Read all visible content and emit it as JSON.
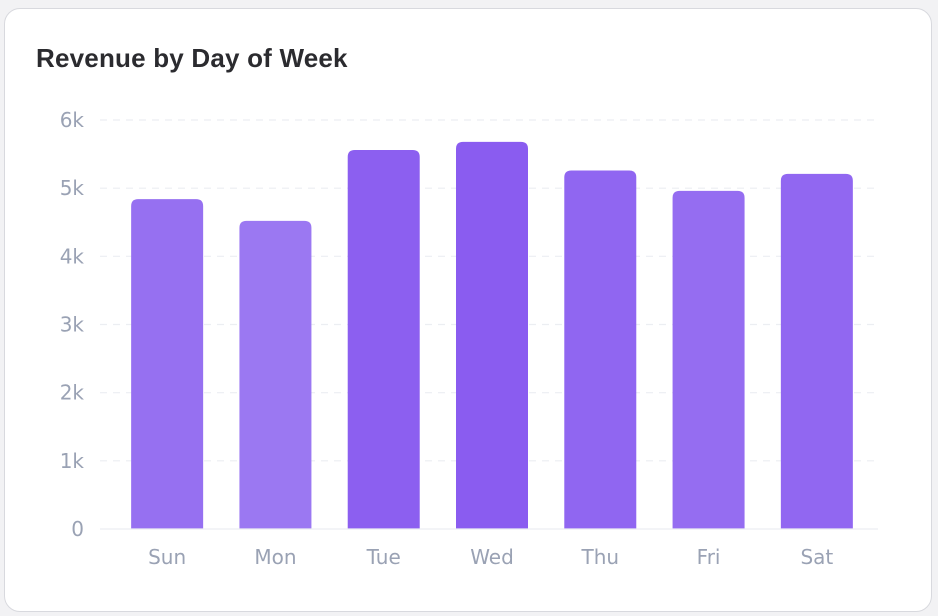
{
  "chart_data": {
    "type": "bar",
    "title": "Revenue by Day of Week",
    "xlabel": "",
    "ylabel": "",
    "categories": [
      "Sun",
      "Mon",
      "Tue",
      "Wed",
      "Thu",
      "Fri",
      "Sat"
    ],
    "values": [
      4840,
      4520,
      5560,
      5680,
      5260,
      4960,
      5210
    ],
    "ylim": [
      0,
      6000
    ],
    "yticks": [
      0,
      1000,
      2000,
      3000,
      4000,
      5000,
      6000
    ],
    "ytick_labels": [
      "0",
      "1k",
      "2k",
      "3k",
      "4k",
      "5k",
      "6k"
    ],
    "grid": true,
    "legend": "none",
    "bar_color_light": "#9b78f2",
    "bar_color_dark": "#8a5cf0",
    "grid_color": "#eceef2",
    "label_color": "#9aa2b4"
  }
}
